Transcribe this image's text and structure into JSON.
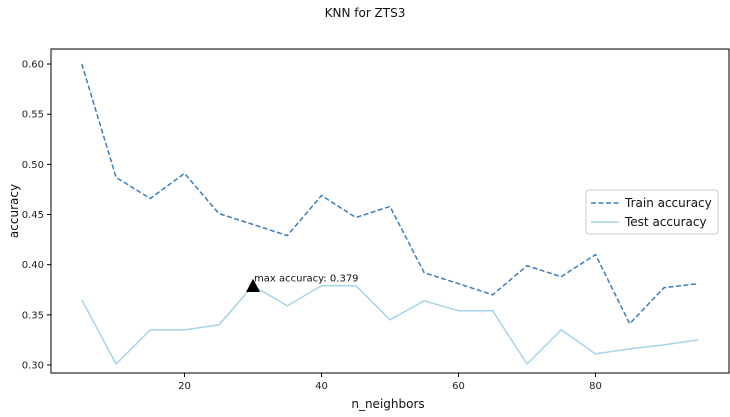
{
  "chart_data": {
    "type": "line",
    "title": "KNN for ZTS3",
    "xlabel": "n_neighbors",
    "ylabel": "accuracy",
    "xlim": [
      0.5,
      99.5
    ],
    "ylim": [
      0.292,
      0.615
    ],
    "xticks": [
      20,
      40,
      60,
      80
    ],
    "yticks": [
      0.3,
      0.35,
      0.4,
      0.45,
      0.5,
      0.55,
      0.6
    ],
    "ytick_labels": [
      "0.30",
      "0.35",
      "0.40",
      "0.45",
      "0.50",
      "0.55",
      "0.60"
    ],
    "x": [
      5,
      10,
      15,
      20,
      25,
      30,
      35,
      40,
      45,
      50,
      55,
      60,
      65,
      70,
      75,
      80,
      85,
      90,
      95
    ],
    "series": [
      {
        "name": "Train accuracy",
        "style": "dashed",
        "color": "#3a7fbd",
        "values": [
          0.6,
          0.487,
          0.466,
          0.491,
          0.451,
          0.44,
          0.429,
          0.469,
          0.447,
          0.458,
          0.392,
          0.381,
          0.37,
          0.399,
          0.388,
          0.41,
          0.341,
          0.377,
          0.381
        ]
      },
      {
        "name": "Test accuracy",
        "style": "solid",
        "color": "#a6d3ea",
        "values": [
          0.365,
          0.301,
          0.335,
          0.335,
          0.34,
          0.379,
          0.359,
          0.379,
          0.379,
          0.345,
          0.364,
          0.354,
          0.354,
          0.301,
          0.335,
          0.311,
          0.316,
          0.32,
          0.325
        ]
      }
    ],
    "annotation": {
      "text": "max accuracy: 0.379",
      "x": 30,
      "y": 0.379,
      "marker": "triangle",
      "marker_color": "#000000"
    },
    "legend": {
      "placement": "right"
    },
    "grid": false
  }
}
